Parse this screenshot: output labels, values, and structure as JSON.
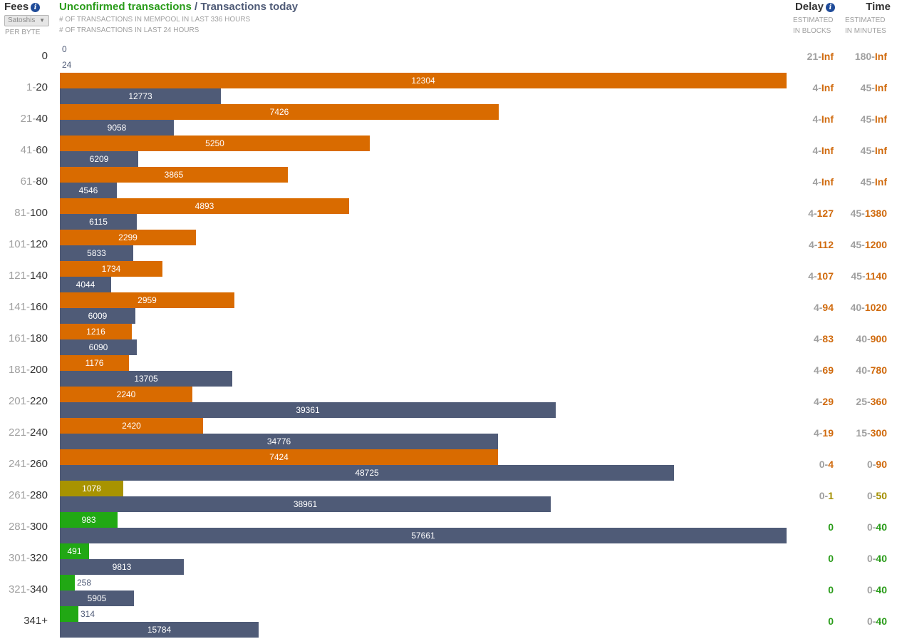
{
  "header": {
    "fees_title": "Fees",
    "unit_select": "Satoshis",
    "unit_sub": "PER BYTE",
    "title_unconfirmed": "Unconfirmed transactions",
    "title_separator": " / ",
    "title_today": "Transactions today",
    "subtitle_mempool": "# OF TRANSACTIONS IN MEMPOOL IN LAST 336 HOURS",
    "subtitle_24h": "# OF TRANSACTIONS IN LAST 24 HOURS",
    "delay_title": "Delay",
    "delay_sub_1": "ESTIMATED",
    "delay_sub_2": "IN BLOCKS",
    "time_title": "Time",
    "time_sub_1": "ESTIMATED",
    "time_sub_2": "IN MINUTES"
  },
  "colors": {
    "unconfirmed_high_delay": "#d96b00",
    "unconfirmed_medium": "#a89300",
    "unconfirmed_low_delay": "#21a814",
    "transactions_today": "#4f5b77",
    "delay_orange": "#d06a0d",
    "delay_olive": "#a38f00",
    "delay_green": "#2a9c1a"
  },
  "chart_data": {
    "type": "bar",
    "orientation": "horizontal",
    "categories": [
      "0",
      "1-20",
      "21-40",
      "41-60",
      "61-80",
      "81-100",
      "101-120",
      "121-140",
      "141-160",
      "161-180",
      "181-200",
      "201-220",
      "221-240",
      "241-260",
      "261-280",
      "281-300",
      "301-320",
      "321-340",
      "341+"
    ],
    "fee_ranges": [
      {
        "lo": "0",
        "hi": ""
      },
      {
        "lo": "1",
        "hi": "20"
      },
      {
        "lo": "21",
        "hi": "40"
      },
      {
        "lo": "41",
        "hi": "60"
      },
      {
        "lo": "61",
        "hi": "80"
      },
      {
        "lo": "81",
        "hi": "100"
      },
      {
        "lo": "101",
        "hi": "120"
      },
      {
        "lo": "121",
        "hi": "140"
      },
      {
        "lo": "141",
        "hi": "160"
      },
      {
        "lo": "161",
        "hi": "180"
      },
      {
        "lo": "181",
        "hi": "200"
      },
      {
        "lo": "201",
        "hi": "220"
      },
      {
        "lo": "221",
        "hi": "240"
      },
      {
        "lo": "241",
        "hi": "260"
      },
      {
        "lo": "261",
        "hi": "280"
      },
      {
        "lo": "281",
        "hi": "300"
      },
      {
        "lo": "301",
        "hi": "320"
      },
      {
        "lo": "321",
        "hi": "340"
      },
      {
        "lo": "341+",
        "hi": ""
      }
    ],
    "series": [
      {
        "name": "Unconfirmed transactions",
        "values": [
          0,
          12304,
          7426,
          5250,
          3865,
          4893,
          2299,
          1734,
          2959,
          1216,
          1176,
          2240,
          2420,
          7424,
          1078,
          983,
          491,
          258,
          314
        ],
        "colors": [
          "orange",
          "orange",
          "orange",
          "orange",
          "orange",
          "orange",
          "orange",
          "orange",
          "orange",
          "orange",
          "orange",
          "orange",
          "orange",
          "orange",
          "olive",
          "green",
          "green",
          "green",
          "green"
        ]
      },
      {
        "name": "Transactions today",
        "values": [
          24,
          12773,
          9058,
          6209,
          4546,
          6115,
          5833,
          4044,
          6009,
          6090,
          13705,
          39361,
          34776,
          48725,
          38961,
          57661,
          9813,
          5905,
          15784
        ]
      }
    ],
    "scales": {
      "unconfirmed_max": 12304,
      "today_max": 57661
    },
    "delay_blocks": [
      {
        "lo": "21",
        "hi": "Inf",
        "color": "orange"
      },
      {
        "lo": "4",
        "hi": "Inf",
        "color": "orange"
      },
      {
        "lo": "4",
        "hi": "Inf",
        "color": "orange"
      },
      {
        "lo": "4",
        "hi": "Inf",
        "color": "orange"
      },
      {
        "lo": "4",
        "hi": "Inf",
        "color": "orange"
      },
      {
        "lo": "4",
        "hi": "127",
        "color": "orange"
      },
      {
        "lo": "4",
        "hi": "112",
        "color": "orange"
      },
      {
        "lo": "4",
        "hi": "107",
        "color": "orange"
      },
      {
        "lo": "4",
        "hi": "94",
        "color": "orange"
      },
      {
        "lo": "4",
        "hi": "83",
        "color": "orange"
      },
      {
        "lo": "4",
        "hi": "69",
        "color": "orange"
      },
      {
        "lo": "4",
        "hi": "29",
        "color": "orange"
      },
      {
        "lo": "4",
        "hi": "19",
        "color": "orange"
      },
      {
        "lo": "0",
        "hi": "4",
        "color": "orange"
      },
      {
        "lo": "0",
        "hi": "1",
        "color": "olive"
      },
      {
        "lo": "",
        "hi": "0",
        "color": "green"
      },
      {
        "lo": "",
        "hi": "0",
        "color": "green"
      },
      {
        "lo": "",
        "hi": "0",
        "color": "green"
      },
      {
        "lo": "",
        "hi": "0",
        "color": "green"
      }
    ],
    "time_minutes": [
      {
        "lo": "180",
        "hi": "Inf",
        "color": "orange"
      },
      {
        "lo": "45",
        "hi": "Inf",
        "color": "orange"
      },
      {
        "lo": "45",
        "hi": "Inf",
        "color": "orange"
      },
      {
        "lo": "45",
        "hi": "Inf",
        "color": "orange"
      },
      {
        "lo": "45",
        "hi": "Inf",
        "color": "orange"
      },
      {
        "lo": "45",
        "hi": "1380",
        "color": "orange"
      },
      {
        "lo": "45",
        "hi": "1200",
        "color": "orange"
      },
      {
        "lo": "45",
        "hi": "1140",
        "color": "orange"
      },
      {
        "lo": "40",
        "hi": "1020",
        "color": "orange"
      },
      {
        "lo": "40",
        "hi": "900",
        "color": "orange"
      },
      {
        "lo": "40",
        "hi": "780",
        "color": "orange"
      },
      {
        "lo": "25",
        "hi": "360",
        "color": "orange"
      },
      {
        "lo": "15",
        "hi": "300",
        "color": "orange"
      },
      {
        "lo": "0",
        "hi": "90",
        "color": "orange"
      },
      {
        "lo": "0",
        "hi": "50",
        "color": "olive"
      },
      {
        "lo": "0",
        "hi": "40",
        "color": "green"
      },
      {
        "lo": "0",
        "hi": "40",
        "color": "green"
      },
      {
        "lo": "0",
        "hi": "40",
        "color": "green"
      },
      {
        "lo": "0",
        "hi": "40",
        "color": "green"
      }
    ]
  }
}
